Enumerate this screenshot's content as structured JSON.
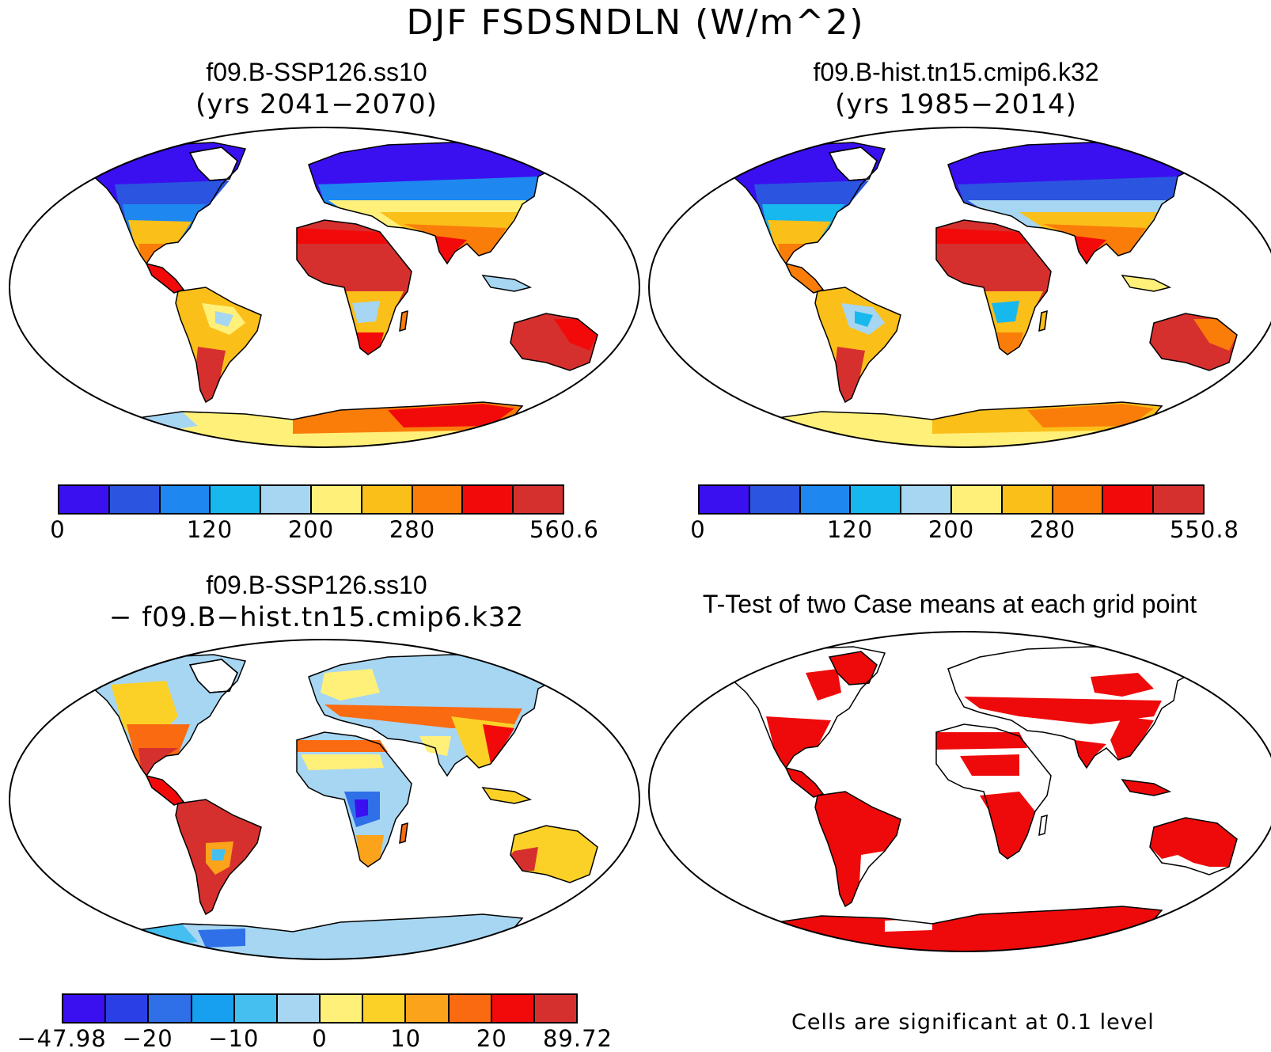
{
  "title": "DJF FSDSNDLN (W/m^2)",
  "panels": {
    "top_left": {
      "title": "f09.B-SSP126.ss10",
      "subtitle": "(yrs 2041−2070)"
    },
    "top_right": {
      "title": "f09.B-hist.tn15.cmip6.k32",
      "subtitle": "(yrs 1985−2014)"
    },
    "bottom_left": {
      "title": "f09.B-SSP126.ss10",
      "subtitle": "− f09.B−hist.tn15.cmip6.k32"
    },
    "bottom_right": {
      "title": "T-Test of two Case means at each grid point",
      "note": "Cells are significant at 0.1 level"
    }
  },
  "colorbars": {
    "top_left": {
      "colors": [
        "#3a10f0",
        "#2b55e0",
        "#1e88f0",
        "#17b8ee",
        "#a6d6f2",
        "#fff07a",
        "#fbbf1a",
        "#fa7d0a",
        "#f20a0a",
        "#d6302e"
      ],
      "ticks": [
        "0",
        "120",
        "200",
        "280",
        "560.6"
      ]
    },
    "top_right": {
      "colors": [
        "#3a10f0",
        "#2b55e0",
        "#1e88f0",
        "#17b8ee",
        "#a6d6f2",
        "#fff07a",
        "#fbbf1a",
        "#fa7d0a",
        "#f20a0a",
        "#d6302e"
      ],
      "ticks": [
        "0",
        "120",
        "200",
        "280",
        "550.8"
      ]
    },
    "bottom_left": {
      "colors": [
        "#3a10f0",
        "#2b3fe6",
        "#2f6fe8",
        "#17a0f0",
        "#45bff0",
        "#a6d6f2",
        "#fff07a",
        "#fbd128",
        "#fba31a",
        "#fa6a10",
        "#f20a0a",
        "#d6302e"
      ],
      "ticks": [
        "−47.98",
        "−20",
        "−10",
        "0",
        "10",
        "20",
        "89.72"
      ]
    }
  }
}
